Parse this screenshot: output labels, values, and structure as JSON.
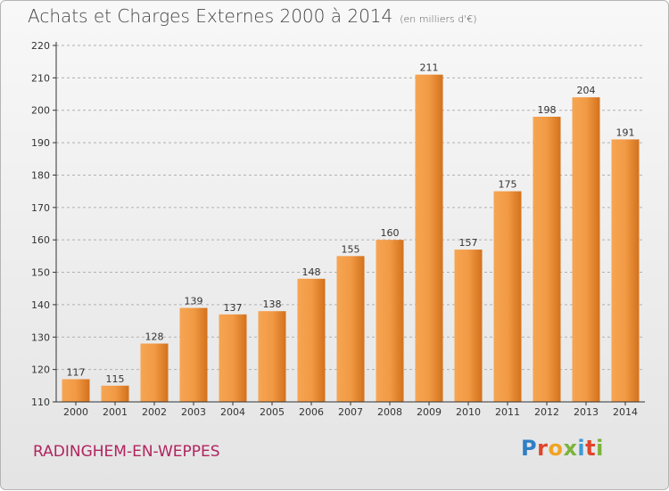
{
  "header": {
    "title": "Achats et Charges Externes 2000 à 2014",
    "units": "(en milliers d'€)"
  },
  "footer": {
    "city": "RADINGHEM-EN-WEPPES",
    "logo": "Proxiti"
  },
  "logo_colors": [
    "#2f7fc6",
    "#e0452b",
    "#f0a323",
    "#7bb43a",
    "#3b9ad8",
    "#e0452b",
    "#7bb43a"
  ],
  "colors": {
    "bar_top": "#f6a552",
    "bar_bottom": "#d3711c",
    "axis": "#333333",
    "grid": "#b0b0b0"
  },
  "chart_data": {
    "type": "bar",
    "categories": [
      "2000",
      "2001",
      "2002",
      "2003",
      "2004",
      "2005",
      "2006",
      "2007",
      "2008",
      "2009",
      "2010",
      "2011",
      "2012",
      "2013",
      "2014"
    ],
    "values": [
      117,
      115,
      128,
      139,
      137,
      138,
      148,
      155,
      160,
      211,
      157,
      175,
      198,
      204,
      191
    ],
    "ylim": [
      110,
      220
    ],
    "yticks": [
      110,
      120,
      130,
      140,
      150,
      160,
      170,
      180,
      190,
      200,
      210,
      220
    ],
    "grid": "horizontal-dashed",
    "xlabel": "",
    "ylabel": ""
  }
}
